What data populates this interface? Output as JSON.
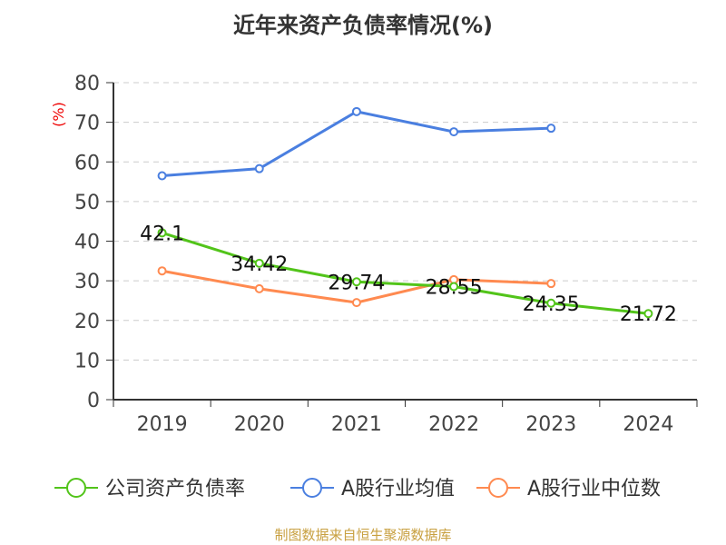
{
  "chart_data": {
    "type": "line",
    "title": "近年来资产负债率情况(%)",
    "ylabel": "(%)",
    "ylim": [
      0,
      80
    ],
    "yticks": [
      0,
      10,
      20,
      30,
      40,
      50,
      60,
      70,
      80
    ],
    "categories": [
      "2019",
      "2020",
      "2021",
      "2022",
      "2023",
      "2024"
    ],
    "grid": true,
    "legend_position": "bottom",
    "series": [
      {
        "name": "公司资产负债率",
        "color": "#52c41a",
        "values": [
          42.1,
          34.42,
          29.74,
          28.55,
          24.35,
          21.72
        ],
        "labels": [
          "42.1",
          "34.42",
          "29.74",
          "28.55",
          "24.35",
          "21.72"
        ]
      },
      {
        "name": "A股行业均值",
        "color": "#4a7fe0",
        "values": [
          56.5,
          58.3,
          72.7,
          67.6,
          68.5,
          null
        ]
      },
      {
        "name": "A股行业中位数",
        "color": "#ff8a50",
        "values": [
          32.5,
          28.0,
          24.5,
          30.3,
          29.3,
          null
        ]
      }
    ]
  },
  "source": "制图数据来自恒生聚源数据库"
}
